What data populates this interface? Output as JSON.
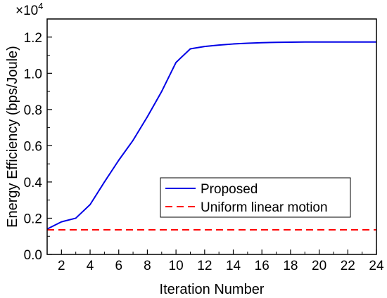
{
  "chart_data": {
    "type": "line",
    "title": "",
    "xlabel": "Iteration Number",
    "ylabel": "Energy Efficiency (bps/Joule)",
    "y_multiplier": "×10",
    "y_multiplier_exponent": "4",
    "xlim": [
      1,
      24
    ],
    "ylim": [
      0,
      1.3
    ],
    "xticks": [
      2,
      4,
      6,
      8,
      10,
      12,
      14,
      16,
      18,
      20,
      22,
      24
    ],
    "yticks": [
      0.0,
      0.2,
      0.4,
      0.6,
      0.8,
      1.0,
      1.2
    ],
    "ytick_labels": [
      "0.0",
      "0.2",
      "0.4",
      "0.6",
      "0.8",
      "1.0",
      "1.2"
    ],
    "grid": false,
    "legend_position": "lower-right",
    "series": [
      {
        "name": "Proposed",
        "color": "#0000e6",
        "style": "solid",
        "x": [
          1,
          2,
          3,
          4,
          5,
          6,
          7,
          8,
          9,
          10,
          11,
          12,
          13,
          14,
          15,
          16,
          17,
          18,
          19,
          20,
          21,
          22,
          23,
          24
        ],
        "y": [
          0.14,
          0.18,
          0.2,
          0.275,
          0.4,
          0.52,
          0.63,
          0.76,
          0.9,
          1.06,
          1.135,
          1.148,
          1.156,
          1.162,
          1.166,
          1.169,
          1.171,
          1.172,
          1.173,
          1.173,
          1.173,
          1.173,
          1.173,
          1.173
        ]
      },
      {
        "name": "Uniform linear motion",
        "color": "#ff0000",
        "style": "dashed",
        "x": [
          1,
          24
        ],
        "y": [
          0.136,
          0.136
        ]
      }
    ]
  }
}
